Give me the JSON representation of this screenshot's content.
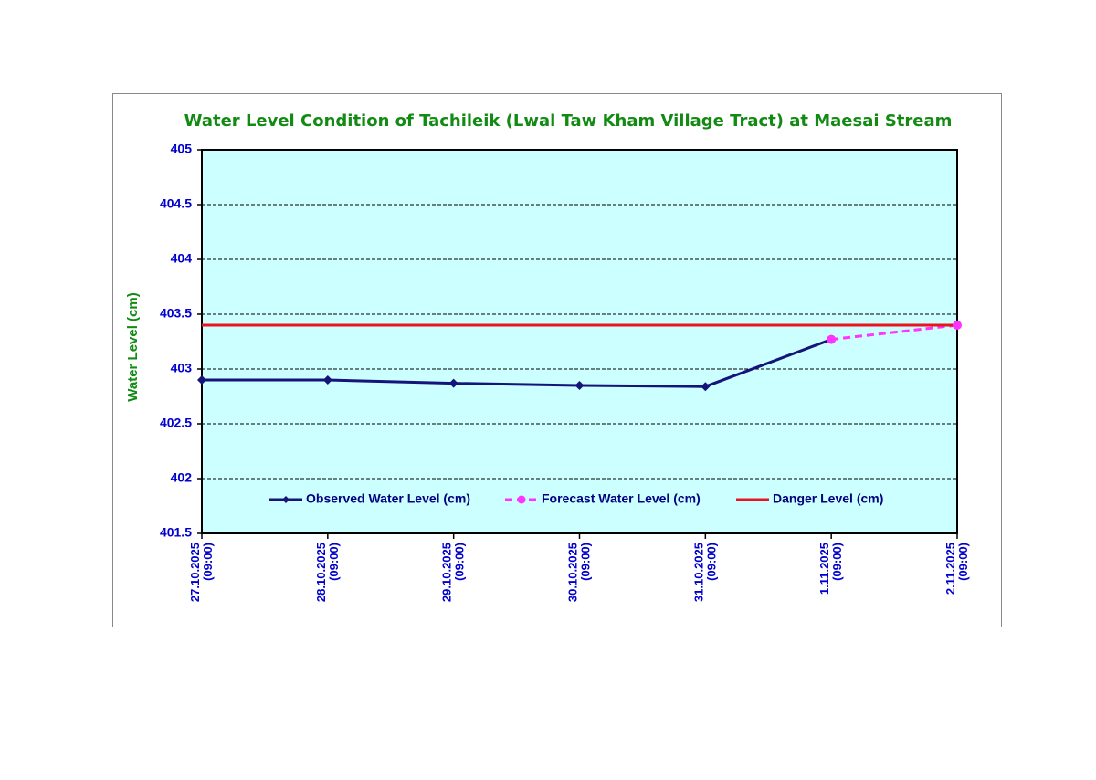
{
  "chart_data": {
    "type": "line",
    "title": "Water Level Condition of Tachileik (Lwal Taw Kham Village Tract) at Maesai Stream",
    "y_label": "Water Level (cm)",
    "categories": [
      [
        "27.10.2025",
        "(09:00)"
      ],
      [
        "28.10.2025",
        "(09:00)"
      ],
      [
        "29.10.2025",
        "(09:00)"
      ],
      [
        "30.10.2025",
        "(09:00)"
      ],
      [
        "31.10.2025",
        "(09:00)"
      ],
      [
        "1.11.2025",
        "(09:00)"
      ],
      [
        "2.11.2025",
        "(09:00)"
      ]
    ],
    "series": [
      {
        "name": "Observed Water Level (cm)",
        "color": "#14147a",
        "marker": "diamond",
        "dashed": false,
        "values": [
          402.9,
          402.9,
          402.87,
          402.85,
          402.84,
          403.27,
          null
        ]
      },
      {
        "name": "Forecast Water Level (cm)",
        "color": "#ff33ff",
        "marker": "circle",
        "dashed": true,
        "values": [
          null,
          null,
          null,
          null,
          null,
          403.27,
          403.4
        ]
      },
      {
        "name": "Danger Level (cm)",
        "color": "#e8141e",
        "marker": "none",
        "dashed": false,
        "values": [
          403.4,
          403.4,
          403.4,
          403.4,
          403.4,
          403.4,
          403.4
        ]
      }
    ],
    "ylim": [
      401.5,
      405
    ],
    "yticks": [
      401.5,
      402,
      402.5,
      403,
      403.5,
      404,
      404.5,
      405
    ],
    "grid": true,
    "plot_background": "#ccffff"
  }
}
